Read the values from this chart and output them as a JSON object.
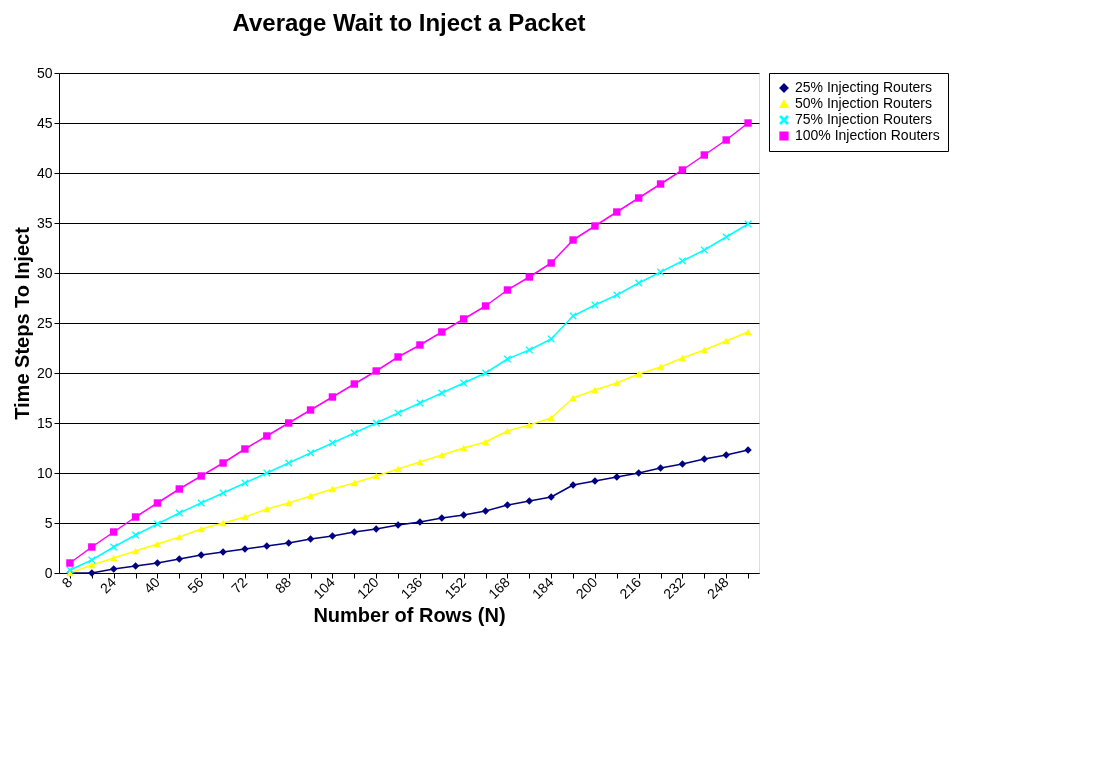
{
  "chart_data": {
    "type": "line",
    "title": "Average Wait to Inject a Packet",
    "xlabel": "Number of Rows (N)",
    "ylabel": "Time Steps To Inject",
    "categories": [
      "8",
      null,
      "24",
      null,
      "40",
      null,
      "56",
      null,
      "72",
      null,
      "88",
      null,
      "104",
      null,
      "120",
      null,
      "136",
      null,
      "152",
      null,
      "168",
      null,
      "184",
      null,
      "200",
      null,
      "216",
      null,
      "232",
      null,
      "248",
      null
    ],
    "series": [
      {
        "name": "25% Injecting Routers",
        "color": "#000080",
        "marker": "diamond",
        "values": [
          0.0,
          0.0,
          0.4,
          0.7,
          1.0,
          1.4,
          1.8,
          2.1,
          2.4,
          2.7,
          3.0,
          3.4,
          3.7,
          4.1,
          4.4,
          4.8,
          5.1,
          5.5,
          5.8,
          6.2,
          6.8,
          7.2,
          7.6,
          8.8,
          9.2,
          9.6,
          10.0,
          10.5,
          10.9,
          11.4,
          11.8,
          12.3
        ]
      },
      {
        "name": "50% Injection Routers",
        "color": "#ffff00",
        "marker": "triangle",
        "values": [
          0.0,
          0.8,
          1.5,
          2.2,
          2.9,
          3.6,
          4.4,
          5.0,
          5.6,
          6.4,
          7.0,
          7.7,
          8.4,
          9.0,
          9.7,
          10.4,
          11.1,
          11.8,
          12.5,
          13.1,
          14.2,
          14.8,
          15.5,
          17.5,
          18.3,
          19.0,
          19.9,
          20.6,
          21.5,
          22.3,
          23.2,
          24.1
        ]
      },
      {
        "name": "75% Injection Routers",
        "color": "#00ffff",
        "marker": "cross",
        "values": [
          0.3,
          1.3,
          2.6,
          3.8,
          4.9,
          6.0,
          7.0,
          8.0,
          9.0,
          10.0,
          11.0,
          12.0,
          13.0,
          14.0,
          15.0,
          16.0,
          17.0,
          18.0,
          19.0,
          20.0,
          21.4,
          22.3,
          23.4,
          25.7,
          26.8,
          27.8,
          29.0,
          30.1,
          31.2,
          32.3,
          33.6,
          34.9
        ]
      },
      {
        "name": "100% Injection Routers",
        "color": "#ff00ff",
        "marker": "square",
        "values": [
          1.0,
          2.6,
          4.1,
          5.6,
          7.0,
          8.4,
          9.7,
          11.0,
          12.4,
          13.7,
          15.0,
          16.3,
          17.6,
          18.9,
          20.2,
          21.6,
          22.8,
          24.1,
          25.4,
          26.7,
          28.3,
          29.6,
          31.0,
          33.3,
          34.7,
          36.1,
          37.5,
          38.9,
          40.3,
          41.8,
          43.3,
          45.0
        ]
      }
    ],
    "ylim": [
      0,
      50
    ],
    "yticks": [
      0,
      5,
      10,
      15,
      20,
      25,
      30,
      35,
      40,
      45,
      50
    ],
    "grid": "y",
    "legend": "right",
    "line_style": "solid"
  }
}
